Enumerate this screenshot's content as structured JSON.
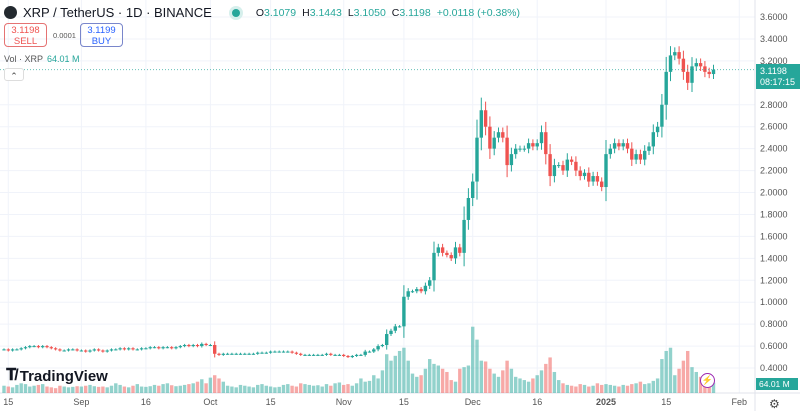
{
  "header": {
    "symbol": "XRP / TetherUS · 1D · BINANCE",
    "o_label": "O",
    "o": "3.1079",
    "h_label": "H",
    "h": "3.1443",
    "l_label": "L",
    "l": "3.1050",
    "c_label": "C",
    "c": "3.1198",
    "change": "+0.0118 (+0.38%)"
  },
  "trade": {
    "sell_price": "3.1198",
    "sell_label": "SELL",
    "spread": "0.0001",
    "buy_price": "3.1199",
    "buy_label": "BUY"
  },
  "volume_legend": {
    "label": "Vol · XRP",
    "value": "64.01 M"
  },
  "price_tag": {
    "price": "3.1198",
    "countdown": "08:17:15"
  },
  "volume_tag": "64.01 M",
  "brand": "TradingView",
  "colors": {
    "up": "#26a69a",
    "down": "#ef5350"
  },
  "chart_data": {
    "type": "candlestick",
    "ylim": [
      0.3,
      3.7
    ],
    "y_ticks": [
      "3.6000",
      "3.4000",
      "3.2000",
      "2.8000",
      "2.6000",
      "2.4000",
      "2.2000",
      "2.0000",
      "1.8000",
      "1.6000",
      "1.4000",
      "1.2000",
      "1.0000",
      "0.8000",
      "0.6000",
      "0.4000"
    ],
    "x_ticks": [
      {
        "label": "15",
        "day": 1
      },
      {
        "label": "Sep",
        "day": 18
      },
      {
        "label": "16",
        "day": 33
      },
      {
        "label": "Oct",
        "day": 48
      },
      {
        "label": "15",
        "day": 62
      },
      {
        "label": "Nov",
        "day": 79
      },
      {
        "label": "15",
        "day": 93
      },
      {
        "label": "Dec",
        "day": 109
      },
      {
        "label": "16",
        "day": 124
      },
      {
        "label": "2025",
        "day": 140
      },
      {
        "label": "15",
        "day": 154
      },
      {
        "label": "Feb",
        "day": 171
      }
    ],
    "start_date": "Aug 14",
    "closes": [
      0.57,
      0.56,
      0.57,
      0.57,
      0.58,
      0.59,
      0.6,
      0.6,
      0.59,
      0.6,
      0.59,
      0.58,
      0.57,
      0.56,
      0.56,
      0.57,
      0.57,
      0.56,
      0.56,
      0.55,
      0.56,
      0.57,
      0.56,
      0.55,
      0.56,
      0.57,
      0.57,
      0.58,
      0.57,
      0.58,
      0.57,
      0.57,
      0.58,
      0.58,
      0.59,
      0.59,
      0.58,
      0.59,
      0.59,
      0.58,
      0.59,
      0.6,
      0.61,
      0.6,
      0.61,
      0.6,
      0.62,
      0.61,
      0.61,
      0.53,
      0.52,
      0.53,
      0.53,
      0.53,
      0.53,
      0.53,
      0.53,
      0.53,
      0.53,
      0.54,
      0.54,
      0.54,
      0.55,
      0.55,
      0.55,
      0.55,
      0.55,
      0.54,
      0.53,
      0.52,
      0.52,
      0.52,
      0.52,
      0.52,
      0.52,
      0.53,
      0.52,
      0.52,
      0.52,
      0.51,
      0.5,
      0.51,
      0.52,
      0.52,
      0.55,
      0.55,
      0.57,
      0.6,
      0.61,
      0.71,
      0.74,
      0.78,
      0.78,
      1.05,
      1.1,
      1.1,
      1.12,
      1.1,
      1.15,
      1.2,
      1.45,
      1.5,
      1.45,
      1.43,
      1.4,
      1.5,
      1.45,
      1.75,
      1.95,
      2.1,
      2.5,
      2.75,
      2.6,
      2.4,
      2.5,
      2.55,
      2.5,
      2.25,
      2.35,
      2.4,
      2.4,
      2.4,
      2.45,
      2.42,
      2.45,
      2.55,
      2.35,
      2.15,
      2.25,
      2.25,
      2.2,
      2.3,
      2.28,
      2.2,
      2.15,
      2.18,
      2.1,
      2.15,
      2.1,
      2.05,
      2.35,
      2.4,
      2.45,
      2.42,
      2.45,
      2.4,
      2.3,
      2.35,
      2.3,
      2.38,
      2.42,
      2.55,
      2.6,
      2.8,
      3.1,
      3.25,
      3.28,
      3.22,
      3.1,
      3.0,
      3.15,
      3.18,
      3.15,
      3.1,
      3.08,
      3.1198
    ],
    "volumes_m": [
      45,
      40,
      35,
      50,
      60,
      55,
      40,
      45,
      50,
      55,
      40,
      35,
      30,
      45,
      40,
      35,
      38,
      42,
      40,
      45,
      50,
      42,
      38,
      40,
      35,
      45,
      60,
      50,
      40,
      35,
      45,
      55,
      40,
      38,
      42,
      50,
      45,
      55,
      60,
      48,
      42,
      45,
      50,
      55,
      60,
      70,
      85,
      60,
      95,
      110,
      90,
      70,
      45,
      40,
      35,
      50,
      45,
      40,
      35,
      50,
      55,
      45,
      40,
      35,
      38,
      50,
      55,
      45,
      40,
      60,
      55,
      50,
      45,
      48,
      40,
      55,
      45,
      60,
      65,
      50,
      55,
      45,
      60,
      90,
      70,
      75,
      110,
      90,
      140,
      240,
      200,
      230,
      260,
      280,
      200,
      120,
      100,
      110,
      150,
      210,
      180,
      170,
      150,
      130,
      80,
      70,
      150,
      160,
      170,
      410,
      330,
      200,
      195,
      150,
      120,
      100,
      140,
      200,
      150,
      100,
      90,
      80,
      70,
      90,
      110,
      140,
      180,
      220,
      130,
      80,
      60,
      50,
      45,
      40,
      55,
      50,
      40,
      45,
      60,
      50,
      55,
      50,
      45,
      40,
      50,
      45,
      55,
      60,
      70,
      55,
      60,
      75,
      90,
      210,
      260,
      280,
      110,
      150,
      200,
      260,
      160,
      130,
      100,
      110,
      90,
      64.01
    ],
    "volume_max": 600
  }
}
